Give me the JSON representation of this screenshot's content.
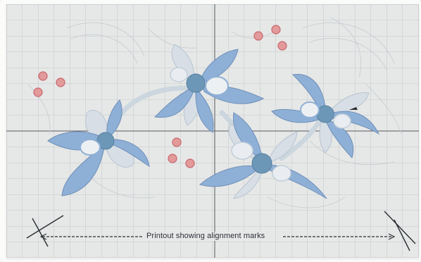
{
  "photo": {
    "subject": "quilting pattern printout with grid, blue flowers, red dots and alignment marks",
    "caption": "Printout showing alignment marks"
  },
  "colors": {
    "paper": "#e6e8e7",
    "grid": "#b9bdc2",
    "petal_fill": "#8fb0d6",
    "petal_stroke": "#6f8fb8",
    "pale_petal": "#d3dbe4",
    "center": "#6d97b7",
    "dot_fill": "#e29a9b",
    "dot_stroke": "#c8666b",
    "mark": "#2a2e33"
  }
}
